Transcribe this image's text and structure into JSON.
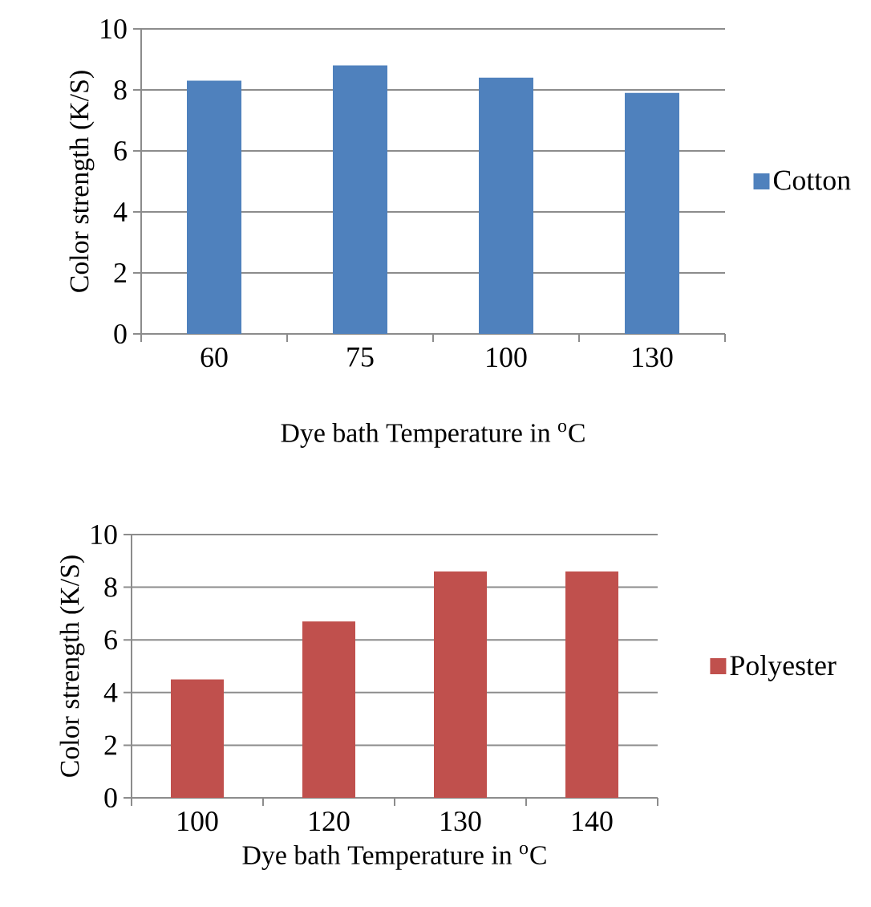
{
  "chart_data": [
    {
      "type": "bar",
      "categories": [
        "60",
        "75",
        "100",
        "130"
      ],
      "xlabel": "Dye bath Temperature in $^{o}$C",
      "ylabel": "Color strength (K/S)",
      "ylim": [
        0,
        10
      ],
      "yticks": [
        0,
        2,
        4,
        6,
        8,
        10
      ],
      "grid": "y",
      "legend": "right",
      "series": [
        {
          "name": "Cotton",
          "color": "#4f81bd",
          "values": [
            8.3,
            8.8,
            8.4,
            7.9
          ]
        }
      ]
    },
    {
      "type": "bar",
      "categories": [
        "100",
        "120",
        "130",
        "140"
      ],
      "xlabel": "Dye bath Temperature in $^{o}$C",
      "ylabel": "Color strength (K/S)",
      "ylim": [
        0,
        10
      ],
      "yticks": [
        0,
        2,
        4,
        6,
        8,
        10
      ],
      "grid": "y",
      "legend": "right",
      "series": [
        {
          "name": "Polyester",
          "color": "#c0504d",
          "values": [
            4.5,
            6.7,
            8.6,
            8.6
          ]
        }
      ]
    }
  ]
}
